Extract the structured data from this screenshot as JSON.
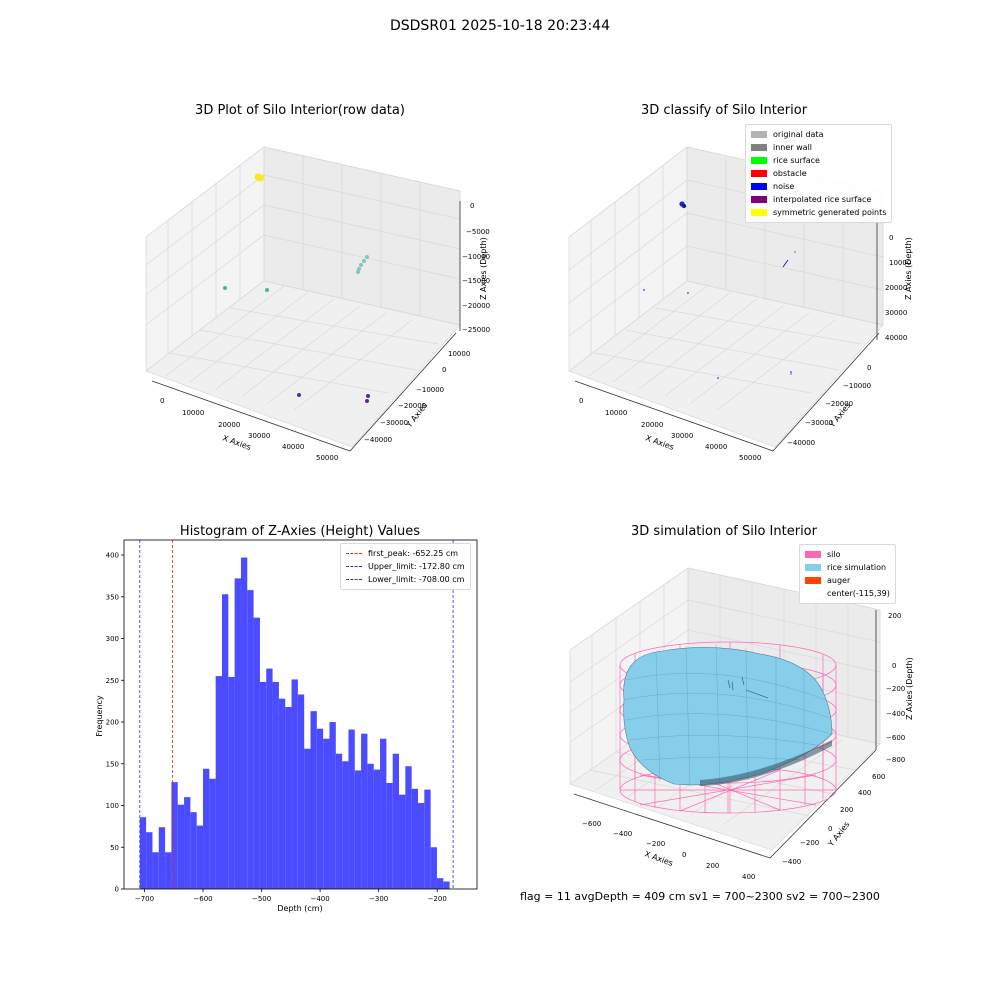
{
  "suptitle": "DSDSR01 2025-10-18 20:23:44",
  "colors": {
    "hist_bar": "#4b4bff",
    "first_peak": "#e32626",
    "limits": "#2a2af0",
    "teal": "#4cb3a4",
    "yellow": "#fde724",
    "navy": "#3b3f8f",
    "purple": "#5d2c7f",
    "silo": "#ff69b4",
    "rice": "#87ceeb",
    "auger": "#ff4500"
  },
  "plot1": {
    "title": "3D Plot of Silo Interior(row data)",
    "xlabel": "X Axies",
    "ylabel": "Y Axies",
    "zlabel": "Z Axies (Depth)",
    "xticks": [
      "0",
      "10000",
      "20000",
      "30000",
      "40000",
      "50000"
    ],
    "yticks": [
      "10000",
      "0",
      "−10000",
      "−20000",
      "−30000",
      "−40000"
    ],
    "zticks": [
      "0",
      "−5000",
      "−10000",
      "−15000",
      "−20000",
      "−25000"
    ]
  },
  "plot2": {
    "title": "3D classify of Silo Interior",
    "xlabel": "X Axies",
    "ylabel": "Y Axies",
    "zlabel": "Z Axies (Depth)",
    "xticks": [
      "0",
      "10000",
      "20000",
      "30000",
      "40000",
      "50000"
    ],
    "yticks": [
      "0",
      "−10000",
      "−20000",
      "−30000",
      "−40000"
    ],
    "zticks": [
      "0",
      "10000",
      "20000",
      "30000",
      "40000"
    ],
    "legend": [
      {
        "label": "original data",
        "color": "#b3b3b3"
      },
      {
        "label": "inner wall",
        "color": "#808080"
      },
      {
        "label": "rice surface",
        "color": "#00ff00"
      },
      {
        "label": "obstacle",
        "color": "#ff0000"
      },
      {
        "label": "noise",
        "color": "#0000ff"
      },
      {
        "label": "interpolated rice surface",
        "color": "#800080"
      },
      {
        "label": "symmetric generated points",
        "color": "#ffff00"
      }
    ]
  },
  "plot4": {
    "title": "3D simulation of Silo Interior",
    "xlabel": "X Axies",
    "ylabel": "Y Axies",
    "zlabel": "Z Axies (Depth)",
    "xticks": [
      "−600",
      "−400",
      "−200",
      "0",
      "200",
      "400"
    ],
    "yticks": [
      "600",
      "400",
      "200",
      "0",
      "−200",
      "−400"
    ],
    "zticks": [
      "200",
      "0",
      "−200",
      "−400",
      "−600",
      "−800"
    ],
    "legend": [
      {
        "label": "silo",
        "color": "#ff69b4"
      },
      {
        "label": "rice simulation",
        "color": "#87ceeb"
      },
      {
        "label": "auger",
        "color": "#ff4500"
      },
      {
        "label": "center(-115,39)",
        "color": ""
      }
    ]
  },
  "status": "flag = 11   avgDepth = 409 cm  sv1 = 700~2300  sv2 = 700~2300",
  "chart_data": {
    "type": "bar",
    "title": "Histogram of Z-Axies (Height) Values",
    "xlabel": "Depth (cm)",
    "ylabel": "Frequency",
    "xlim": [
      -735,
      -132
    ],
    "ylim": [
      0,
      418
    ],
    "xticks": [
      -700,
      -600,
      -500,
      -400,
      -300,
      -200
    ],
    "xtick_labels": [
      "−700",
      "−600",
      "−500",
      "−400",
      "−300",
      "−200"
    ],
    "yticks": [
      0,
      50,
      100,
      150,
      200,
      250,
      300,
      350,
      400
    ],
    "bins_start": -708,
    "bin_width": 10.8,
    "values": [
      86,
      68,
      44,
      74,
      44,
      128,
      101,
      110,
      92,
      76,
      144,
      132,
      255,
      353,
      254,
      372,
      397,
      358,
      325,
      248,
      264,
      248,
      228,
      218,
      251,
      233,
      168,
      213,
      192,
      180,
      200,
      162,
      153,
      191,
      142,
      186,
      150,
      143,
      180,
      127,
      162,
      113,
      147,
      120,
      103,
      119,
      50,
      13,
      9
    ],
    "lines": [
      {
        "label": "first_peak: -652.25 cm",
        "x": -652.25,
        "color": "#e32626"
      },
      {
        "label": "Upper_limit: -172.80 cm",
        "x": -172.8,
        "color": "#2a2af0"
      },
      {
        "label": "Lower_limit: -708.00 cm",
        "x": -708.0,
        "color": "#2a2af0"
      }
    ],
    "legend_position": "upper right"
  }
}
